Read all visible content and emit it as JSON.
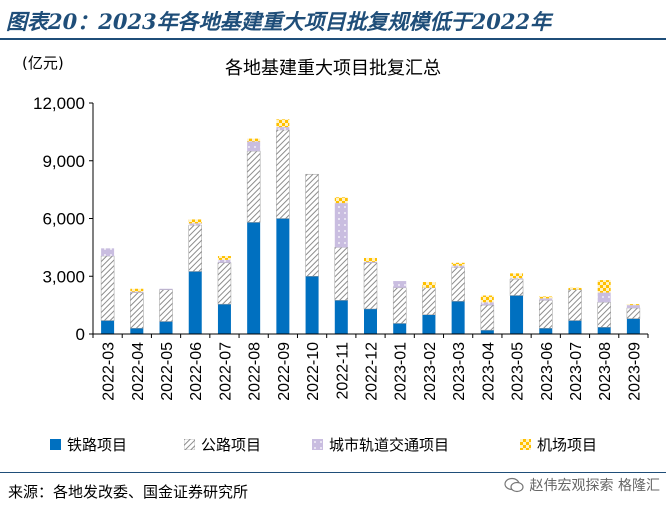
{
  "header": {
    "title": "图表20：2023年各地基建重大项目批复规模低于2022年"
  },
  "unit_label": "(亿元)",
  "source": "来源：各地发改委、国金证券研究所",
  "watermark": "赵伟宏观探索 格隆汇",
  "colors": {
    "railway": "#0070c0",
    "highway_stripe": "#8c8c8c",
    "metro": "#c9bde0",
    "airport": "#ffc000",
    "header": "#1f4e79"
  },
  "chart_data": {
    "type": "bar",
    "stacked": true,
    "title": "各地基建重大项目批复汇总",
    "ylabel": "(亿元)",
    "ylim": [
      0,
      12000
    ],
    "yticks": [
      0,
      3000,
      6000,
      9000,
      12000
    ],
    "ytick_labels": [
      "0",
      "3,000",
      "6,000",
      "9,000",
      "12,000"
    ],
    "categories": [
      "2022-03",
      "2022-04",
      "2022-05",
      "2022-06",
      "2022-07",
      "2022-08",
      "2022-09",
      "2022-10",
      "2022-11",
      "2022-12",
      "2023-01",
      "2023-02",
      "2023-03",
      "2023-04",
      "2023-05",
      "2023-06",
      "2023-07",
      "2023-08",
      "2023-09"
    ],
    "series": [
      {
        "name": "铁路项目",
        "values": [
          700,
          300,
          650,
          3250,
          1550,
          5800,
          6000,
          3000,
          1750,
          1300,
          550,
          1000,
          1700,
          200,
          2000,
          300,
          700,
          350,
          800
        ]
      },
      {
        "name": "公路项目",
        "values": [
          3350,
          1850,
          1650,
          2400,
          2150,
          3700,
          4600,
          5300,
          2750,
          2400,
          1850,
          1400,
          1750,
          1300,
          850,
          1450,
          1600,
          1300,
          550
        ]
      },
      {
        "name": "城市轨道交通项目",
        "values": [
          400,
          50,
          50,
          100,
          150,
          500,
          150,
          0,
          2300,
          50,
          350,
          0,
          100,
          150,
          50,
          100,
          0,
          500,
          150
        ]
      },
      {
        "name": "机场项目",
        "values": [
          0,
          150,
          0,
          200,
          200,
          150,
          400,
          0,
          300,
          200,
          0,
          300,
          150,
          350,
          250,
          100,
          100,
          650,
          50
        ]
      }
    ],
    "legend_position": "bottom"
  }
}
